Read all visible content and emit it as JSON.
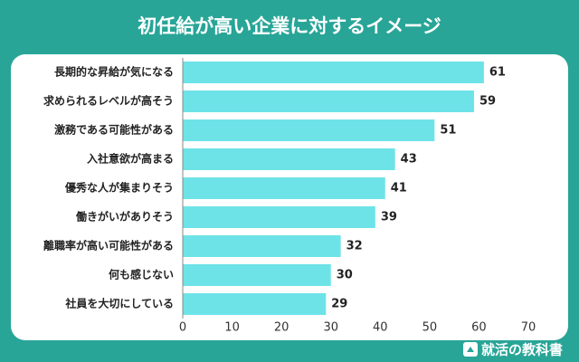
{
  "chart_data": {
    "type": "bar",
    "orientation": "horizontal",
    "title": "初任給が高い企業に対するイメージ",
    "categories": [
      "長期的な昇給が気になる",
      "求められるレベルが高そう",
      "激務である可能性がある",
      "入社意欲が高まる",
      "優秀な人が集まりそう",
      "働きがいがありそう",
      "離職率が高い可能性がある",
      "何も感じない",
      "社員を大切にしている"
    ],
    "values": [
      61,
      59,
      51,
      43,
      41,
      39,
      32,
      30,
      29
    ],
    "color": "#6de3e8",
    "xlim": [
      0,
      70
    ],
    "xticks": [
      0,
      10,
      20,
      30,
      40,
      50,
      60,
      70
    ]
  },
  "brand": "就活の教科書"
}
